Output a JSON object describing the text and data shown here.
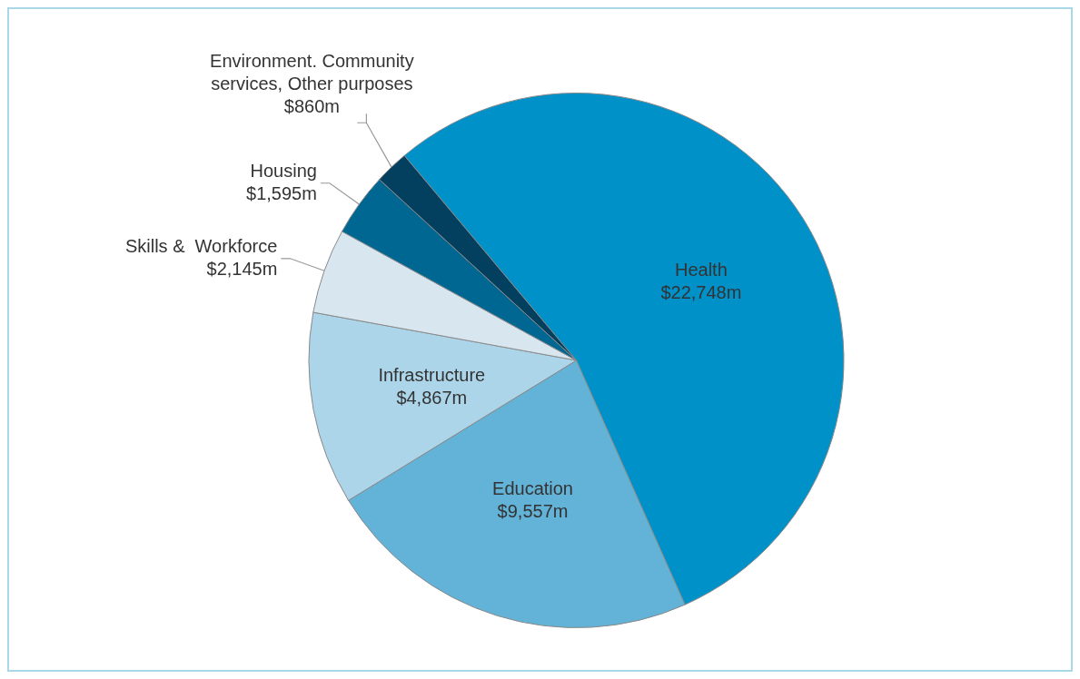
{
  "chart_data": {
    "type": "pie",
    "categories": [
      "Health",
      "Education",
      "Infrastructure",
      "Skills &  Workforce",
      "Housing",
      "Environment. Community services, Other purposes"
    ],
    "values": [
      22748,
      9557,
      4867,
      2145,
      1595,
      860
    ],
    "value_labels": [
      "$22,748m",
      "$9,557m",
      "$4,867m",
      "$2,145m",
      "$1,595m",
      "$860m"
    ],
    "colors": [
      "#0191c9",
      "#62b3d7",
      "#acd5e9",
      "#d8e7ef",
      "#006792",
      "#033f5e"
    ]
  }
}
